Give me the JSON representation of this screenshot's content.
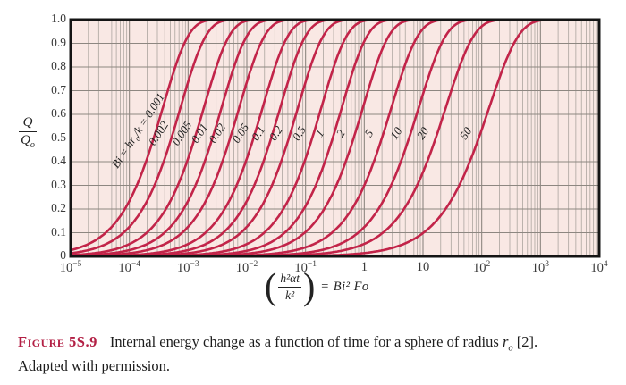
{
  "figure_caption": {
    "label": "Figure 5S.9",
    "text_before_symbol": "Internal energy change as a function of time for a sphere of radius ",
    "radius_symbol": "r",
    "radius_subscript": "o",
    "text_after_symbol": " [2].",
    "line2": "Adapted with permission."
  },
  "chart_data": {
    "type": "line",
    "title": "",
    "x_scale": "log",
    "xlim": [
      1e-05,
      10000
    ],
    "ylim": [
      0,
      1.0
    ],
    "grid": "log minor vertical gridlines each decade; horizontal gridlines every 0.1",
    "legend": "labels written along each curve",
    "xlabel": "(h²αt/k²) = Bi² Fo",
    "xlabel_equation": {
      "numerator": "h²αt",
      "denominator": "k²",
      "rhs": "= Bi² Fo",
      "open_paren": "(",
      "close_paren": ")"
    },
    "ylabel": "Q/Qo",
    "ylabel_fraction": {
      "numerator": "Q",
      "denominator_base": "Q",
      "denominator_subscript": "o"
    },
    "x_ticks": [
      {
        "base": "10",
        "exp": "−5"
      },
      {
        "base": "10",
        "exp": "−4"
      },
      {
        "base": "10",
        "exp": "−3"
      },
      {
        "base": "10",
        "exp": "−2"
      },
      {
        "base": "10",
        "exp": "−1"
      },
      {
        "base": "1"
      },
      {
        "base": "10"
      },
      {
        "base": "10",
        "exp": "2"
      },
      {
        "base": "10",
        "exp": "3"
      },
      {
        "base": "10",
        "exp": "4"
      }
    ],
    "y_ticks": [
      {
        "value": 1.0,
        "label": "1.0"
      },
      {
        "value": 0.9,
        "label": "0.9"
      },
      {
        "value": 0.8,
        "label": "0.8"
      },
      {
        "value": 0.7,
        "label": "0.7"
      },
      {
        "value": 0.6,
        "label": "0.6"
      },
      {
        "value": 0.5,
        "label": "0.5"
      },
      {
        "value": 0.4,
        "label": "0.4"
      },
      {
        "value": 0.3,
        "label": "0.3"
      },
      {
        "value": 0.2,
        "label": "0.2"
      },
      {
        "value": 0.1,
        "label": "0.1"
      },
      {
        "value": 0.0,
        "label": "0"
      }
    ],
    "first_curve_label_parts": [
      {
        "t": "Bi = hr"
      },
      {
        "t": "o",
        "sub": true
      },
      {
        "t": "/k = 0.001"
      }
    ],
    "shape_model": "Q/Qo = 1 - exp(-ln2 * (x/x_half)^(1/spread)) with x = Bi^2*Fo",
    "curves": [
      {
        "bi": 0.001,
        "label": "0.001",
        "x_half": 0.00026,
        "spread": 1.0
      },
      {
        "bi": 0.002,
        "label": "0.002",
        "x_half": 0.00052,
        "spread": 1.0
      },
      {
        "bi": 0.005,
        "label": "0.005",
        "x_half": 0.0013,
        "spread": 1.0
      },
      {
        "bi": 0.01,
        "label": "0.01",
        "x_half": 0.0026,
        "spread": 1.0
      },
      {
        "bi": 0.02,
        "label": "0.02",
        "x_half": 0.0052,
        "spread": 1.0
      },
      {
        "bi": 0.05,
        "label": "0.05",
        "x_half": 0.013,
        "spread": 1.0
      },
      {
        "bi": 0.1,
        "label": "0.1",
        "x_half": 0.026,
        "spread": 1.0
      },
      {
        "bi": 0.2,
        "label": "0.2",
        "x_half": 0.052,
        "spread": 1.0
      },
      {
        "bi": 0.5,
        "label": "0.5",
        "x_half": 0.13,
        "spread": 1.0
      },
      {
        "bi": 1,
        "label": "1",
        "x_half": 0.29,
        "spread": 1.0
      },
      {
        "bi": 2,
        "label": "2",
        "x_half": 0.66,
        "spread": 1.02
      },
      {
        "bi": 5,
        "label": "5",
        "x_half": 2.0,
        "spread": 1.04
      },
      {
        "bi": 10,
        "label": "10",
        "x_half": 5.8,
        "spread": 1.06
      },
      {
        "bi": 20,
        "label": "20",
        "x_half": 16.5,
        "spread": 1.1
      },
      {
        "bi": 50,
        "label": "50",
        "x_half": 89,
        "spread": 1.15
      }
    ],
    "colors": {
      "curve": "#c22449",
      "plot_bg": "#f9e8e4",
      "grid_minor": "#aca59f",
      "grid_major": "#8d8781",
      "frame": "#141414",
      "caption_label": "#b32045",
      "text": "#2a2a2a"
    }
  }
}
